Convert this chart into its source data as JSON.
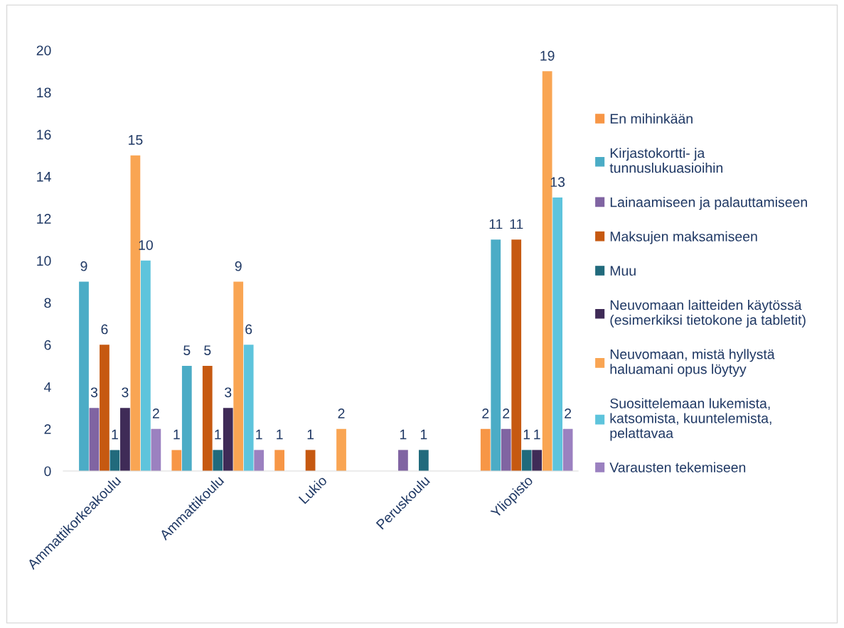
{
  "chart_data": {
    "type": "bar",
    "categories": [
      "Ammattikorkeakoulu",
      "Ammattikoulu",
      "Lukio",
      "Peruskoulu",
      "Yliopisto"
    ],
    "series": [
      {
        "name": "En mihinkään",
        "color": "#f79646",
        "values": [
          null,
          1,
          1,
          null,
          2
        ]
      },
      {
        "name": "Kirjastokortti- ja\ntunnuslukuasioihin",
        "color": "#4bacc6",
        "values": [
          9,
          5,
          null,
          null,
          11
        ]
      },
      {
        "name": "Lainaamiseen ja palauttamiseen",
        "color": "#8064a2",
        "values": [
          3,
          null,
          null,
          1,
          2
        ]
      },
      {
        "name": "Maksujen maksamiseen",
        "color": "#c65911",
        "values": [
          6,
          5,
          1,
          null,
          11
        ]
      },
      {
        "name": "Muu",
        "color": "#216a7c",
        "values": [
          1,
          1,
          null,
          1,
          1
        ]
      },
      {
        "name": "Neuvomaan laitteiden käytössä\n(esimerkiksi tietokone ja tabletit)",
        "color": "#3f2b57",
        "values": [
          3,
          3,
          null,
          null,
          1
        ]
      },
      {
        "name": "Neuvomaan, mistä hyllystä\nhaluamani opus löytyy",
        "color": "#f9a553",
        "values": [
          15,
          9,
          2,
          null,
          19
        ]
      },
      {
        "name": "Suosittelemaan lukemista,\nkatsomista, kuuntelemista,\npelattavaa",
        "color": "#5ec4dc",
        "values": [
          10,
          6,
          null,
          null,
          13
        ]
      },
      {
        "name": "Varausten tekemiseen",
        "color": "#9b81c0",
        "values": [
          2,
          1,
          null,
          null,
          2
        ]
      }
    ],
    "ylim": [
      0,
      20
    ],
    "yticks": [
      0,
      2,
      4,
      6,
      8,
      10,
      12,
      14,
      16,
      18,
      20
    ],
    "data_labels": true,
    "legend": "right",
    "grid": false
  }
}
